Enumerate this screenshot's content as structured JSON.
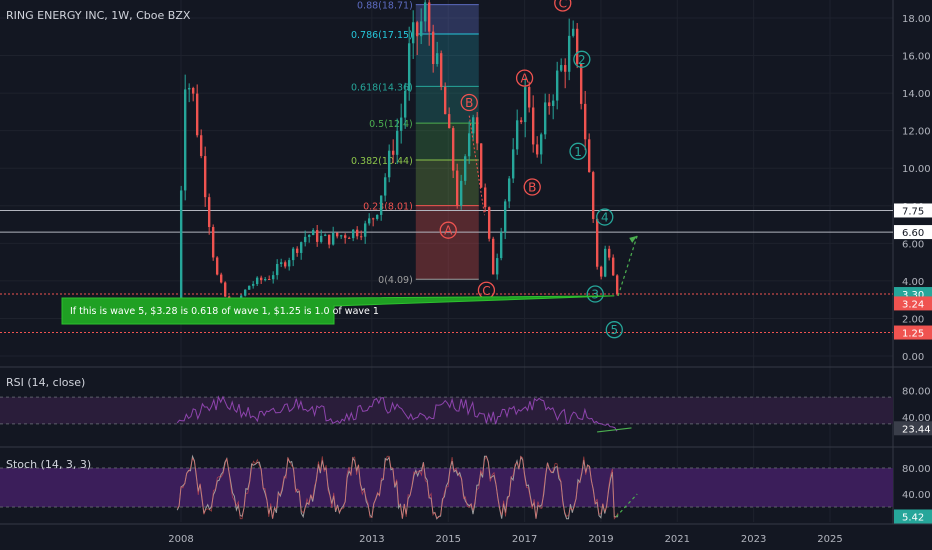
{
  "header": {
    "title": "RING ENERGY INC, 1W, Cboe BZX"
  },
  "colors": {
    "background": "#131722",
    "grid": "#1e222d",
    "up_candle": "#26a69a",
    "down_candle": "#ef5350",
    "wave_red": "#ef5350",
    "wave_teal": "#26a69a",
    "annotation_green": "#1fa023",
    "rsi_band": "#2a1d3a",
    "stoch_band": "#3b1e5a"
  },
  "chart_data": [
    {
      "type": "candlestick",
      "title": "RING ENERGY INC, 1W, Cboe BZX",
      "ylim": [
        -0.8,
        19.5
      ],
      "x_ticks": [
        "2008",
        "2013",
        "2015",
        "2017",
        "2019",
        "2021",
        "2023",
        "2025"
      ],
      "x_tick_years": [
        2008,
        2013,
        2015,
        2017,
        2019,
        2021,
        2023,
        2025
      ],
      "y_ticks": [
        "0.00",
        "2.00",
        "4.00",
        "6.00",
        "8.00",
        "10.00",
        "12.00",
        "14.00",
        "16.00",
        "18.00"
      ],
      "y_tick_values": [
        0,
        2,
        4,
        6,
        8,
        10,
        12,
        14,
        16,
        18
      ],
      "close_path": [
        [
          2007.9,
          2.6
        ],
        [
          2008.1,
          15.0
        ],
        [
          2008.3,
          14.0
        ],
        [
          2008.6,
          9.5
        ],
        [
          2008.9,
          4.5
        ],
        [
          2009.3,
          2.4
        ],
        [
          2009.8,
          3.8
        ],
        [
          2010.3,
          4.2
        ],
        [
          2010.8,
          5.2
        ],
        [
          2011.3,
          6.5
        ],
        [
          2011.8,
          6.2
        ],
        [
          2012.3,
          6.5
        ],
        [
          2012.8,
          6.8
        ],
        [
          2013.1,
          7.6
        ],
        [
          2013.5,
          10.8
        ],
        [
          2013.8,
          13.0
        ],
        [
          2014.0,
          16.5
        ],
        [
          2014.2,
          17.2
        ],
        [
          2014.4,
          18.3
        ],
        [
          2014.6,
          16.5
        ],
        [
          2014.8,
          14.2
        ],
        [
          2014.95,
          12.5
        ],
        [
          2015.1,
          10.5
        ],
        [
          2015.25,
          8.0
        ],
        [
          2015.4,
          9.5
        ],
        [
          2015.55,
          12.0
        ],
        [
          2015.7,
          14.0
        ],
        [
          2015.8,
          10.0
        ],
        [
          2015.95,
          8.0
        ],
        [
          2016.1,
          5.5
        ],
        [
          2016.2,
          4.2
        ],
        [
          2016.35,
          6.5
        ],
        [
          2016.5,
          8.5
        ],
        [
          2016.7,
          10.5
        ],
        [
          2016.85,
          12.5
        ],
        [
          2017.0,
          14.0
        ],
        [
          2017.15,
          13.5
        ],
        [
          2017.3,
          10.0
        ],
        [
          2017.5,
          12.5
        ],
        [
          2017.7,
          14.0
        ],
        [
          2017.9,
          15.0
        ],
        [
          2018.1,
          16.0
        ],
        [
          2018.25,
          17.2
        ],
        [
          2018.35,
          15.0
        ],
        [
          2018.45,
          14.5
        ],
        [
          2018.55,
          12.5
        ],
        [
          2018.65,
          10.5
        ],
        [
          2018.75,
          8.5
        ],
        [
          2018.85,
          6.0
        ],
        [
          2018.95,
          3.8
        ],
        [
          2019.05,
          4.5
        ],
        [
          2019.15,
          6.3
        ],
        [
          2019.25,
          5.2
        ],
        [
          2019.35,
          4.3
        ],
        [
          2019.45,
          3.2
        ]
      ],
      "horizontal_lines": [
        {
          "value": 7.75,
          "label": "7.75",
          "color": "#b2b5be",
          "style": "solid"
        },
        {
          "value": 6.6,
          "label": "6.60",
          "color": "#b2b5be",
          "style": "solid"
        },
        {
          "value": 3.3,
          "label": "3.30",
          "color": "#ef5350",
          "style": "dotted"
        },
        {
          "value": 1.25,
          "label": "1.25",
          "color": "#ef5350",
          "style": "dotted"
        }
      ],
      "price_labels": [
        {
          "value": 7.75,
          "label": "7.75",
          "bg": "#ffffff",
          "fg": "#131722"
        },
        {
          "value": 6.6,
          "label": "6.60",
          "bg": "#ffffff",
          "fg": "#131722"
        },
        {
          "value": 3.3,
          "label": "3.30",
          "bg": "#26a69a",
          "fg": "#ffffff"
        },
        {
          "value": 2.8,
          "label": "3.24",
          "bg": "#ef5350",
          "fg": "#ffffff"
        },
        {
          "value": 1.25,
          "label": "1.25",
          "bg": "#ef5350",
          "fg": "#ffffff"
        }
      ],
      "fibonacci": {
        "start_year": 2014.15,
        "end_year": 2015.8,
        "levels": [
          {
            "value": 18.71,
            "label": "0.88(18.71)",
            "color": "#5c6bc0",
            "fill": "rgba(92,107,192,0.35)"
          },
          {
            "value": 17.15,
            "label": "0.786(17.15)",
            "color": "#26c6da",
            "fill": "rgba(38,198,218,0.20)"
          },
          {
            "value": 14.36,
            "label": "0.618(14.36)",
            "color": "#26a69a",
            "fill": "rgba(38,166,154,0.25)"
          },
          {
            "value": 12.4,
            "label": "0.5(12.4)",
            "color": "#4caf50",
            "fill": "rgba(76,175,80,0.25)"
          },
          {
            "value": 10.44,
            "label": "0.382(10.44)",
            "color": "#8bc34a",
            "fill": "rgba(139,195,74,0.25)"
          },
          {
            "value": 8.01,
            "label": "0.23(8.01)",
            "color": "#ef5350",
            "fill": "rgba(239,83,80,0.30)"
          },
          {
            "value": 4.09,
            "label": "0(4.09)",
            "color": "#9e9e9e",
            "fill": "rgba(0,0,0,0)"
          }
        ]
      },
      "wave_labels": [
        {
          "text": "C",
          "x": 2018.0,
          "y": 18.8,
          "color": "red"
        },
        {
          "text": "A",
          "x": 2017.0,
          "y": 14.8,
          "color": "red"
        },
        {
          "text": "B",
          "x": 2015.55,
          "y": 13.5,
          "color": "red"
        },
        {
          "text": "B",
          "x": 2017.2,
          "y": 9.0,
          "color": "red"
        },
        {
          "text": "A",
          "x": 2015.0,
          "y": 6.7,
          "color": "red"
        },
        {
          "text": "C",
          "x": 2016.0,
          "y": 3.5,
          "color": "red"
        },
        {
          "text": "2",
          "x": 2018.5,
          "y": 15.8,
          "color": "teal"
        },
        {
          "text": "1",
          "x": 2018.4,
          "y": 10.9,
          "color": "teal"
        },
        {
          "text": "4",
          "x": 2019.1,
          "y": 7.4,
          "color": "teal"
        },
        {
          "text": "3",
          "x": 2018.85,
          "y": 3.3,
          "color": "teal"
        },
        {
          "text": "5",
          "x": 2019.35,
          "y": 1.4,
          "color": "teal"
        }
      ],
      "annotation": "If this is wave 5, $3.28 is 0.618 of wave 1, $1.25 is 1.0 of wave 1",
      "annotation_anchor": [
        2019.35,
        3.2
      ],
      "projection_arrow": {
        "from": [
          2019.45,
          3.2
        ],
        "to": [
          2019.95,
          6.4
        ]
      }
    },
    {
      "type": "line",
      "title": "RSI (14, close)",
      "ylim": [
        0,
        100
      ],
      "y_ticks": [
        "80.00",
        "40.00"
      ],
      "y_tick_values": [
        80,
        40
      ],
      "band": [
        30,
        70
      ],
      "last_value": "23.44",
      "series_color": "#8e44ad"
    },
    {
      "type": "line",
      "title": "Stoch (14, 3, 3)",
      "ylim": [
        0,
        100
      ],
      "y_ticks": [
        "80.00",
        "40.00"
      ],
      "y_tick_values": [
        80,
        40
      ],
      "band": [
        20,
        80
      ],
      "last_value": "5.42",
      "series_color": "#9e9e9e"
    }
  ]
}
